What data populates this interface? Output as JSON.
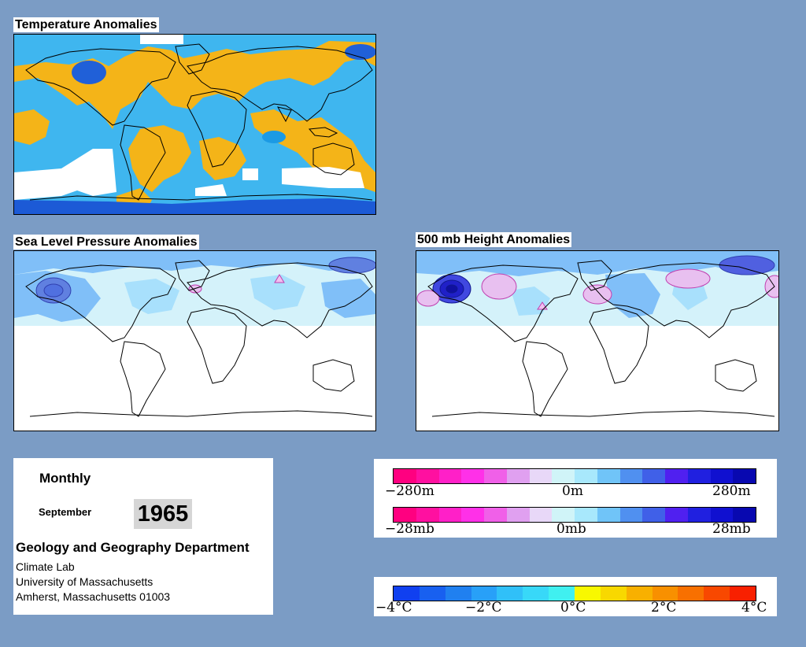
{
  "maps": {
    "temperature": {
      "title": "Temperature Anomalies"
    },
    "sea_level_pressure": {
      "title": "Sea Level Pressure Anomalies"
    },
    "height_500mb": {
      "title": "500 mb Height Anomalies"
    }
  },
  "info": {
    "frequency": "Monthly",
    "month": "September",
    "year": "1965",
    "department": "Geology and Geography Department",
    "lab": "Climate Lab",
    "university": "University of Massachusetts",
    "address": "Amherst, Massachusetts 01003"
  },
  "legend_height": {
    "colors": [
      "#ff0080",
      "#ff10a0",
      "#ff20c8",
      "#ff30e8",
      "#f060e8",
      "#e0a0f0",
      "#e8d8f8",
      "#d0f4f8",
      "#a8e8fc",
      "#70c4f8",
      "#5090f0",
      "#4060e8",
      "#5020f0",
      "#2020e0",
      "#1010d0",
      "#0808b0"
    ],
    "labels": [
      "−280m",
      "0m",
      "280m"
    ]
  },
  "legend_pressure": {
    "colors": [
      "#ff0080",
      "#ff10a0",
      "#ff20c8",
      "#ff30e8",
      "#f060e8",
      "#e0a0f0",
      "#e8d8f8",
      "#d0f4f8",
      "#a8e8fc",
      "#70c4f8",
      "#5090f0",
      "#4060e8",
      "#5020f0",
      "#2020e0",
      "#1010d0",
      "#0808b0"
    ],
    "labels": [
      "−28mb",
      "0mb",
      "28mb"
    ]
  },
  "legend_temperature": {
    "colors": [
      "#1040f0",
      "#1860f0",
      "#2080f0",
      "#28a0f8",
      "#30c0f8",
      "#38d8f8",
      "#40f0f0",
      "#f8f800",
      "#f8d800",
      "#f8b000",
      "#f89000",
      "#f87000",
      "#f84800",
      "#f82000"
    ],
    "labels": [
      "−4°C",
      "−2°C",
      "0°C",
      "2°C",
      "4°C"
    ]
  }
}
